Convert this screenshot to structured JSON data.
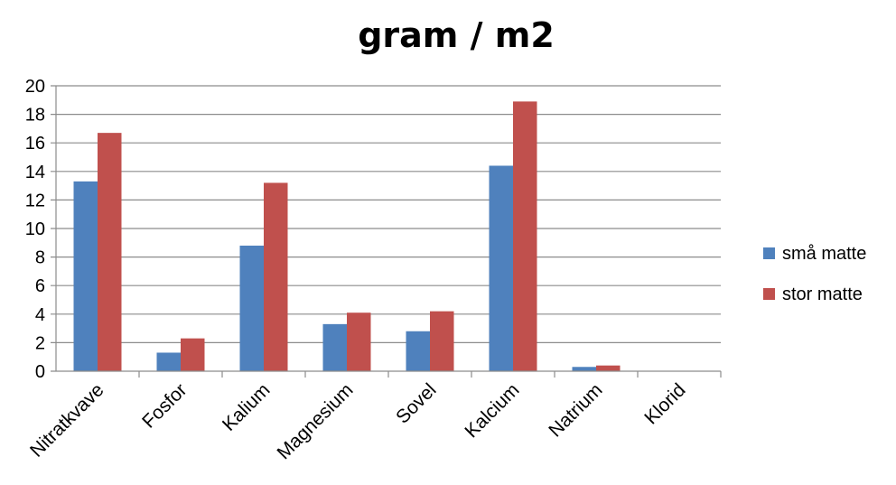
{
  "chart_data": {
    "type": "bar",
    "title": "gram / m2",
    "xlabel": "",
    "ylabel": "",
    "ylim": [
      0,
      20
    ],
    "yticks": [
      "0",
      "2",
      "4",
      "6",
      "8",
      "10",
      "12",
      "14",
      "16",
      "18",
      "20"
    ],
    "grid": true,
    "legend_position": "right",
    "categories": [
      "Nitratkvave",
      "Fosfor",
      "Kalium",
      "Magnesium",
      "Sovel",
      "Kalcium",
      "Natrium",
      "Klorid"
    ],
    "series": [
      {
        "name": "små matte",
        "color": "#4f81bd",
        "values": [
          13.3,
          1.3,
          8.8,
          3.3,
          2.8,
          14.4,
          0.3,
          0
        ]
      },
      {
        "name": "stor matte",
        "color": "#c0504d",
        "values": [
          16.7,
          2.3,
          13.2,
          4.1,
          4.2,
          18.9,
          0.4,
          0
        ]
      }
    ]
  }
}
